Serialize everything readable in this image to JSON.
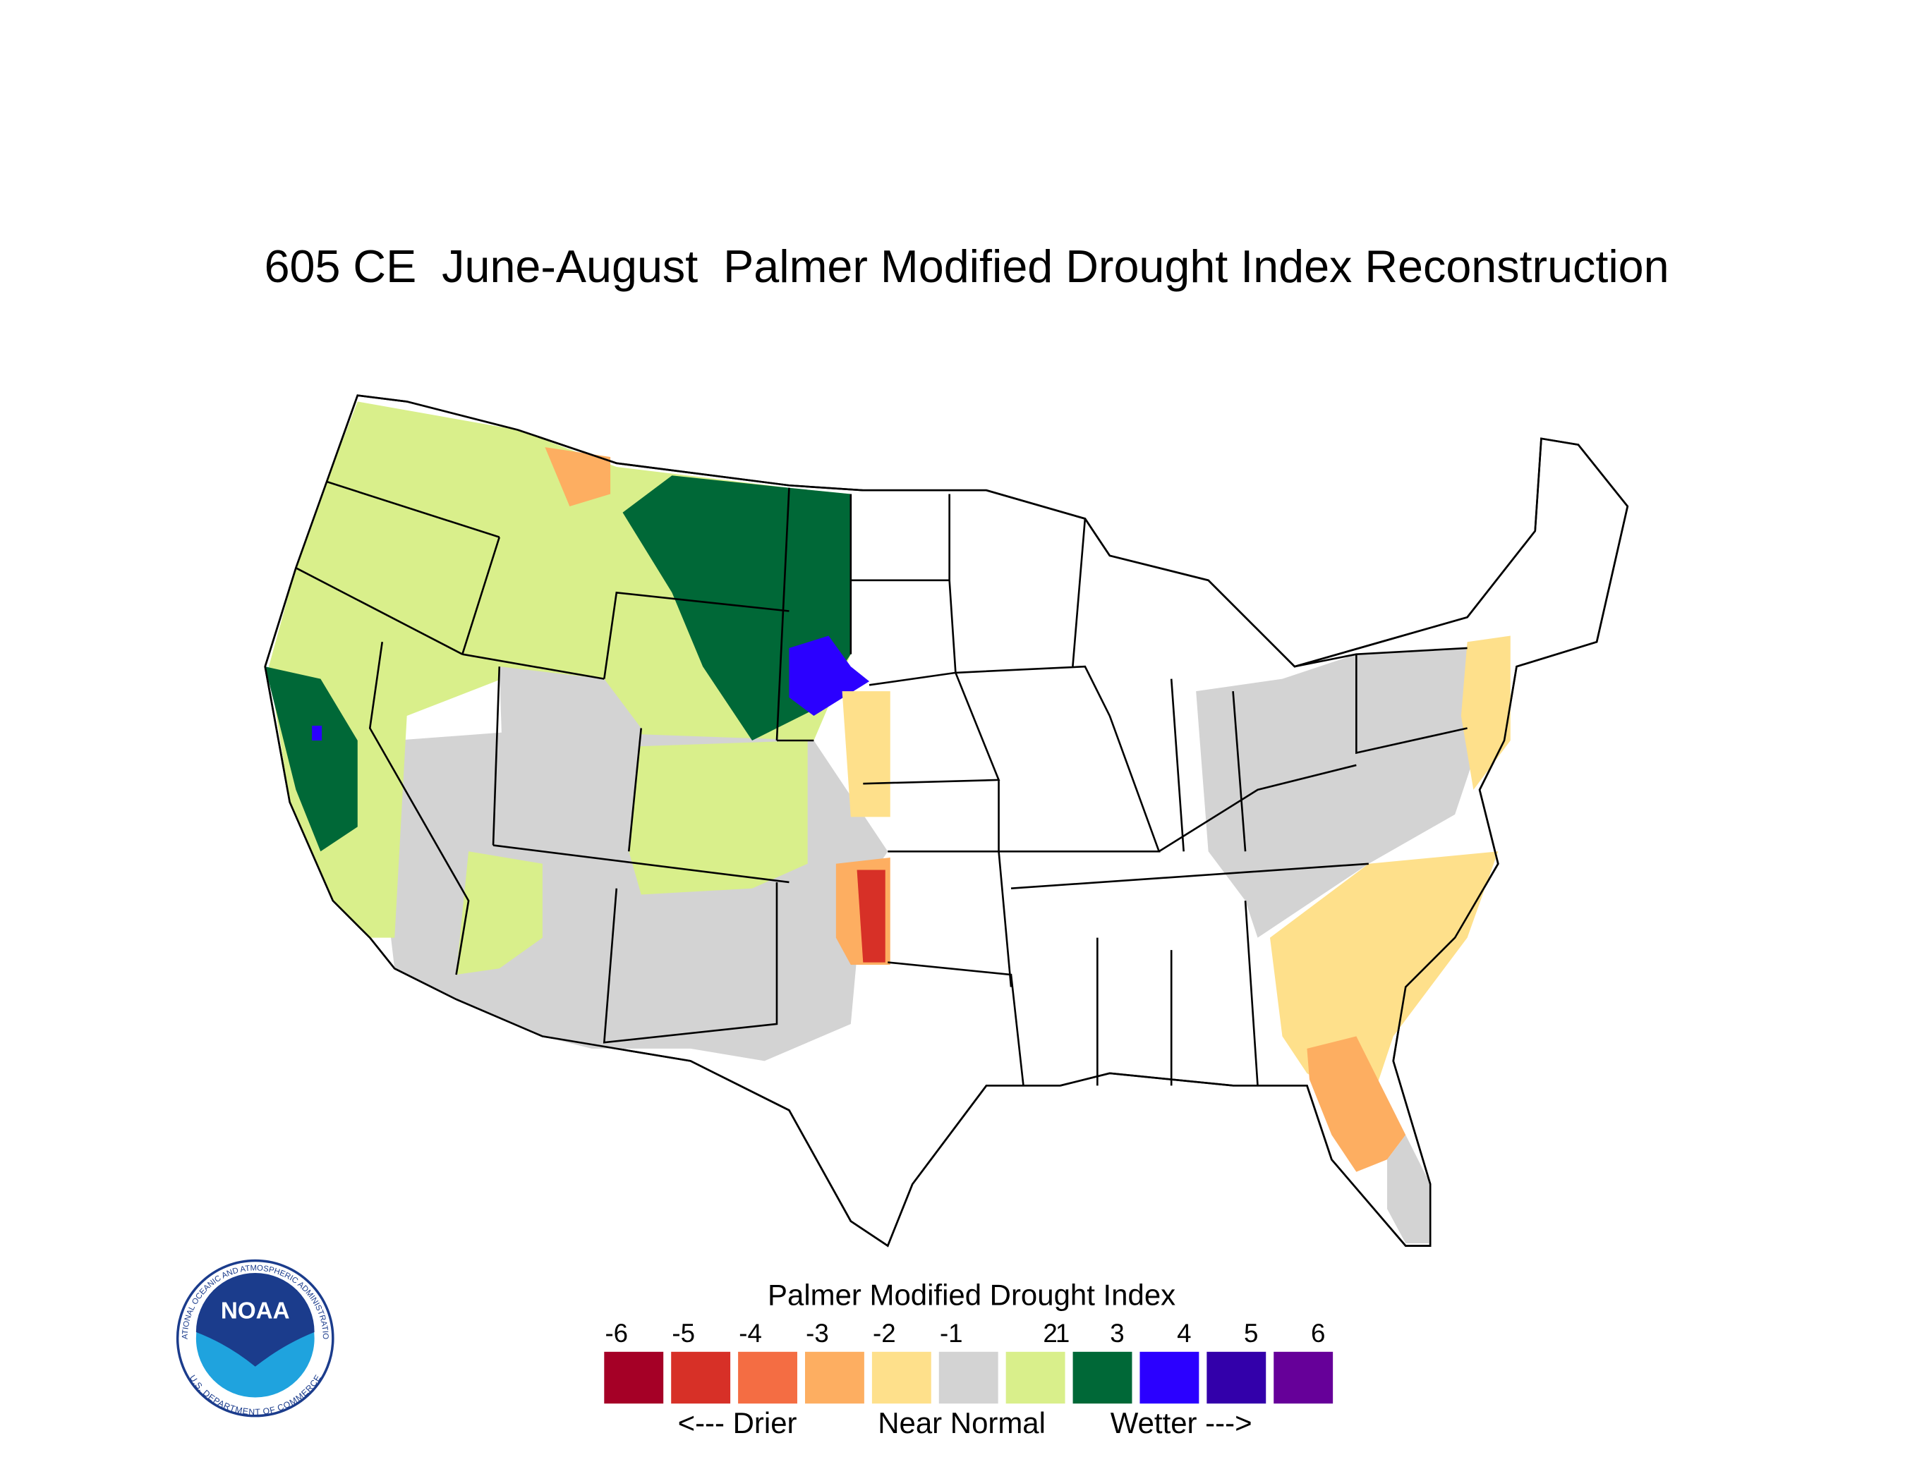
{
  "title": "605 CE  June-August  Palmer Modified Drought Index Reconstruction",
  "legend": {
    "title": "Palmer Modified Drought Index",
    "ticks": [
      -6,
      -5,
      -4,
      -3,
      -2,
      -1,
      1,
      2,
      3,
      4,
      5,
      6
    ],
    "colors": [
      "#a50026",
      "#d73027",
      "#f46d43",
      "#fdae61",
      "#fee08b",
      "#d3d3d3",
      "#d9ef8b",
      "#006837",
      "#2b00ff",
      "#3300aa",
      "#660099"
    ],
    "annotations": [
      "<--- Drier",
      "Near Normal",
      "Wetter --->"
    ]
  },
  "logo": {
    "text": "NOAA",
    "ring_top": "NATIONAL OCEANIC AND ATMOSPHERIC ADMINISTRATION",
    "ring_bottom": "U.S. DEPARTMENT OF COMMERCE"
  }
}
